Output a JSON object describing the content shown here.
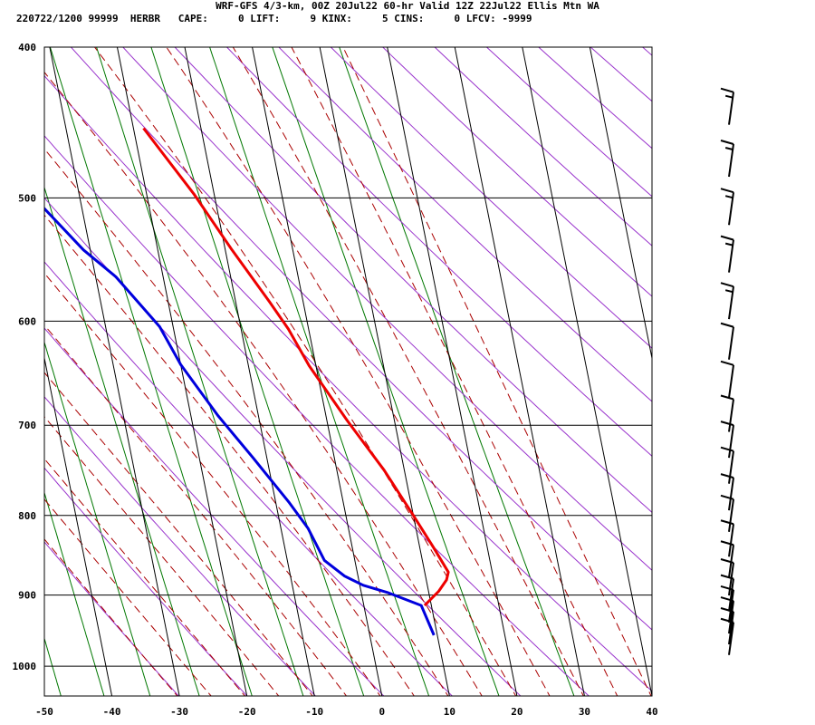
{
  "header": {
    "title": "WRF-GFS 4/3-km, 00Z 20Jul22 60-hr Valid 12Z 22Jul22 Ellis Mtn WA",
    "indices": "220722/1200 99999  HERBR   CAPE:     0 LIFT:     9 KINX:     5 CINS:     0 LFCV: -9999"
  },
  "chart_data": {
    "type": "line",
    "subtype": "skew-t log-p sounding",
    "xlim": [
      -50,
      40
    ],
    "ylim": [
      1045,
      400
    ],
    "y_scale": "log",
    "x_ticks": [
      -50,
      -40,
      -30,
      -20,
      -10,
      0,
      10,
      20,
      30,
      40
    ],
    "y_ticks": [
      400,
      500,
      600,
      700,
      800,
      900,
      1000
    ],
    "series": [
      {
        "role": "temperature",
        "color": "#ee0000",
        "points": [
          [
            -18.5,
            451
          ],
          [
            -13,
            497
          ],
          [
            -9,
            540
          ],
          [
            -5,
            583
          ],
          [
            -3,
            607
          ],
          [
            -1,
            641
          ],
          [
            3,
            695
          ],
          [
            7,
            748
          ],
          [
            10,
            800
          ],
          [
            12,
            838
          ],
          [
            13.5,
            870
          ],
          [
            13,
            880
          ],
          [
            11.5,
            895
          ],
          [
            9,
            914
          ]
        ]
      },
      {
        "role": "dewpoint",
        "color": "#0000dd",
        "points": [
          [
            -36.5,
            451
          ],
          [
            -36,
            505
          ],
          [
            -31,
            540
          ],
          [
            -27,
            562
          ],
          [
            -22,
            605
          ],
          [
            -20,
            640
          ],
          [
            -16,
            690
          ],
          [
            -12,
            735
          ],
          [
            -8,
            785
          ],
          [
            -6,
            815
          ],
          [
            -4.5,
            855
          ],
          [
            -2,
            875
          ],
          [
            0.5,
            887
          ],
          [
            4,
            897
          ],
          [
            8.5,
            914
          ],
          [
            9.5,
            955
          ]
        ]
      }
    ],
    "wind_barb_levels": [
      438,
      473,
      508,
      545,
      584,
      620,
      656,
      690,
      717,
      745,
      775,
      800,
      830,
      856,
      879,
      900,
      915,
      930,
      945,
      960
    ],
    "wind_barb_speeds_kt": [
      15,
      15,
      15,
      15,
      15,
      10,
      10,
      10,
      10,
      10,
      10,
      10,
      10,
      10,
      10,
      10,
      10,
      10,
      10,
      10
    ],
    "colors": {
      "isotherm": "#000000",
      "dry_adiabat": "#9933cc",
      "moist_adiabat": "#aa0000",
      "mixing_ratio": "#007700",
      "temperature": "#ee0000",
      "dewpoint": "#0000dd"
    }
  }
}
